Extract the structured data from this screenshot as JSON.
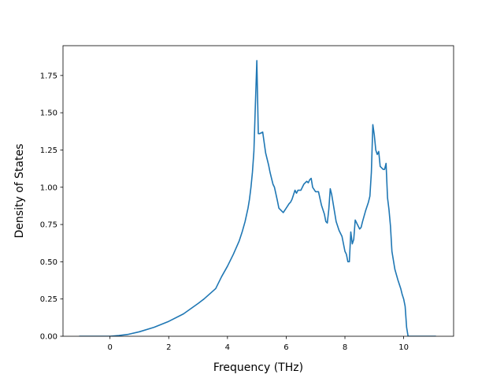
{
  "chart_data": {
    "type": "line",
    "title": "",
    "xlabel": "Frequency (THz)",
    "ylabel": "Density of States",
    "xlim": [
      -1.6,
      11.7
    ],
    "ylim": [
      0,
      1.95
    ],
    "xticks": [
      0,
      2,
      4,
      6,
      8,
      10
    ],
    "xtick_labels": [
      "0",
      "2",
      "4",
      "6",
      "8",
      "10"
    ],
    "yticks": [
      0,
      0.25,
      0.5,
      0.75,
      1.0,
      1.25,
      1.5,
      1.75
    ],
    "ytick_labels": [
      "0.00",
      "0.25",
      "0.50",
      "0.75",
      "1.00",
      "1.25",
      "1.50",
      "1.75"
    ],
    "grid": false,
    "colors": {
      "series": "#1f77b4",
      "axes": "#000000",
      "background": "#ffffff"
    },
    "series": [
      {
        "x": [
          -1.05,
          0.0,
          0.3,
          0.6,
          1.0,
          1.5,
          2.0,
          2.5,
          3.0,
          3.2,
          3.6,
          3.8,
          4.0,
          4.2,
          4.4,
          4.5,
          4.6,
          4.7,
          4.75,
          4.8,
          4.85,
          4.9,
          4.95,
          5.0,
          5.05,
          5.1,
          5.2,
          5.3,
          5.4,
          5.45,
          5.5,
          5.55,
          5.6,
          5.7,
          5.75,
          5.8,
          5.9,
          6.0,
          6.1,
          6.15,
          6.2,
          6.3,
          6.35,
          6.4,
          6.5,
          6.55,
          6.6,
          6.7,
          6.75,
          6.8,
          6.85,
          6.9,
          7.0,
          7.05,
          7.1,
          7.2,
          7.3,
          7.35,
          7.4,
          7.45,
          7.5,
          7.55,
          7.6,
          7.7,
          7.8,
          7.9,
          8.0,
          8.05,
          8.1,
          8.15,
          8.2,
          8.25,
          8.3,
          8.35,
          8.4,
          8.5,
          8.55,
          8.6,
          8.7,
          8.8,
          8.85,
          8.9,
          8.95,
          9.0,
          9.05,
          9.1,
          9.15,
          9.2,
          9.3,
          9.35,
          9.4,
          9.45,
          9.5,
          9.55,
          9.6,
          9.7,
          9.8,
          9.9,
          9.95,
          10.0,
          10.05,
          10.1,
          10.15,
          10.2,
          10.5,
          11.1
        ],
        "y": [
          0.0,
          0.0,
          0.005,
          0.012,
          0.03,
          0.06,
          0.1,
          0.15,
          0.22,
          0.25,
          0.32,
          0.4,
          0.47,
          0.55,
          0.64,
          0.7,
          0.77,
          0.86,
          0.92,
          1.0,
          1.1,
          1.24,
          1.55,
          1.85,
          1.36,
          1.36,
          1.37,
          1.23,
          1.15,
          1.1,
          1.06,
          1.02,
          1.0,
          0.91,
          0.86,
          0.85,
          0.83,
          0.86,
          0.89,
          0.9,
          0.92,
          0.98,
          0.96,
          0.98,
          0.98,
          1.0,
          1.02,
          1.04,
          1.03,
          1.05,
          1.06,
          1.0,
          0.97,
          0.97,
          0.97,
          0.88,
          0.82,
          0.77,
          0.76,
          0.85,
          0.99,
          0.95,
          0.89,
          0.77,
          0.71,
          0.67,
          0.57,
          0.55,
          0.5,
          0.5,
          0.7,
          0.62,
          0.65,
          0.78,
          0.76,
          0.72,
          0.73,
          0.77,
          0.84,
          0.9,
          0.94,
          1.1,
          1.42,
          1.35,
          1.25,
          1.22,
          1.24,
          1.14,
          1.12,
          1.12,
          1.16,
          0.93,
          0.85,
          0.74,
          0.57,
          0.45,
          0.38,
          0.32,
          0.28,
          0.25,
          0.2,
          0.06,
          0.0,
          0.0,
          0.0,
          0.0
        ]
      }
    ]
  }
}
